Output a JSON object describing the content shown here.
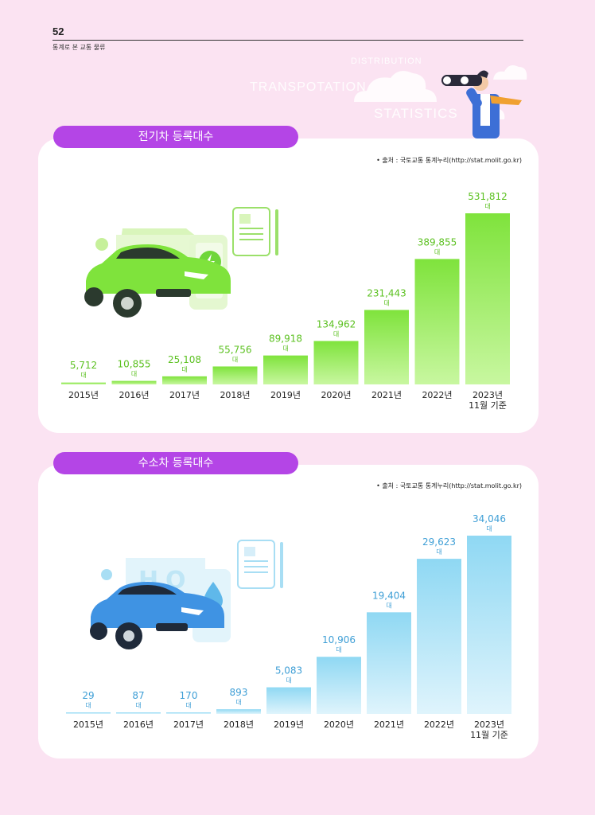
{
  "header": {
    "page_number": "52",
    "book_title": "통계로 본 교통 물류",
    "deco_words": [
      "DISTRIBUTION",
      "TRANSPOTATION",
      "STATISTICS"
    ]
  },
  "colors": {
    "background": "#fbe3f2",
    "pill": "#b445e6",
    "ev_bar_top": "#7fe33c",
    "ev_bar_bottom": "#c8f7a0",
    "ev_label": "#5cc121",
    "h2_bar_top": "#8fd8f3",
    "h2_bar_bottom": "#dff4fc",
    "h2_label": "#3f9fd6"
  },
  "charts": {
    "ev": {
      "title": "전기차 등록대수",
      "source": "• 출처 : 국토교통 통계누리(http://stat.molit.go.kr)"
    },
    "h2": {
      "title": "수소차 등록대수",
      "source": "• 출처 : 국토교통 통계누리(http://stat.molit.go.kr)"
    }
  },
  "chart_data": [
    {
      "type": "bar",
      "title": "전기차 등록대수",
      "categories": [
        "2015년",
        "2016년",
        "2017년",
        "2018년",
        "2019년",
        "2020년",
        "2021년",
        "2022년",
        "2023년 11월 기준"
      ],
      "values": [
        5712,
        10855,
        25108,
        55756,
        89918,
        134962,
        231443,
        389855,
        531812
      ],
      "value_labels": [
        "5,712",
        "10,855",
        "25,108",
        "55,756",
        "89,918",
        "134,962",
        "231,443",
        "389,855",
        "531,812"
      ],
      "unit": "대",
      "ylim": [
        0,
        531812
      ],
      "grid": false
    },
    {
      "type": "bar",
      "title": "수소차 등록대수",
      "categories": [
        "2015년",
        "2016년",
        "2017년",
        "2018년",
        "2019년",
        "2020년",
        "2021년",
        "2022년",
        "2023년 11월 기준"
      ],
      "values": [
        29,
        87,
        170,
        893,
        5083,
        10906,
        19404,
        29623,
        34046
      ],
      "value_labels": [
        "29",
        "87",
        "170",
        "893",
        "5,083",
        "10,906",
        "19,404",
        "29,623",
        "34,046"
      ],
      "unit": "대",
      "ylim": [
        0,
        34046
      ],
      "grid": false
    }
  ]
}
